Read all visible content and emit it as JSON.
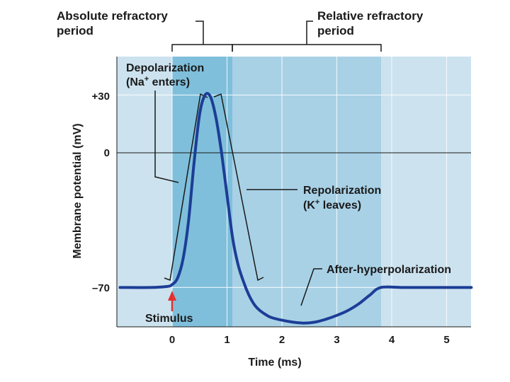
{
  "chart_data": {
    "type": "line",
    "title": "",
    "xlabel": "Time (ms)",
    "ylabel": "Membrane potential (mV)",
    "xlim": [
      -1,
      5.45
    ],
    "ylim": [
      -100,
      48
    ],
    "x_ticks": [
      "0",
      "1",
      "2",
      "3",
      "4",
      "5"
    ],
    "y_ticks": [
      "+30",
      "0",
      "–70"
    ],
    "grid": true,
    "series": [
      {
        "x": [
          -0.95,
          -0.4,
          -0.1,
          0.0,
          0.1,
          0.2,
          0.3,
          0.4,
          0.5,
          0.6,
          0.7,
          0.8,
          0.9,
          1.0,
          1.1,
          1.2,
          1.3,
          1.4,
          1.5,
          1.6,
          1.7,
          1.8,
          2.0,
          2.2,
          2.4,
          2.6,
          2.8,
          3.0,
          3.2,
          3.4,
          3.6,
          3.8,
          4.2,
          4.6,
          5.0,
          5.45
        ],
        "values": [
          -70,
          -70,
          -69.5,
          -68.5,
          -65,
          -55,
          -35,
          -5,
          20,
          30,
          29,
          18,
          0,
          -22,
          -44,
          -58,
          -67,
          -74,
          -79,
          -82,
          -84,
          -85.5,
          -87,
          -88,
          -88.5,
          -88,
          -86.5,
          -84.5,
          -82,
          -78.5,
          -74,
          -70,
          -70,
          -70,
          -70,
          -70
        ]
      }
    ],
    "regions": [
      {
        "label": "Absolute refractory period",
        "from": 0,
        "to": 1.1
      },
      {
        "label": "Relative refractory period",
        "from": 1.1,
        "to": 3.8
      }
    ],
    "annotations": {
      "absolute": [
        "Absolute refractory",
        "period"
      ],
      "relative": [
        "Relative refractory",
        "period"
      ],
      "depolarization": [
        "Depolarization",
        "(Na",
        "+",
        " enters)"
      ],
      "repolarization": [
        "Repolarization",
        "(K",
        "+",
        " leaves)"
      ],
      "after_hyper": "After-hyperpolarization",
      "stimulus": "Stimulus"
    },
    "colors": {
      "plot_bg": "#cce2ef",
      "relative_band": "#a8d1e6",
      "absolute_band": "#7fbfdb",
      "curve": "#1c3d96",
      "stimulus_arrow": "#e23030",
      "grid": "#ffffff"
    }
  }
}
